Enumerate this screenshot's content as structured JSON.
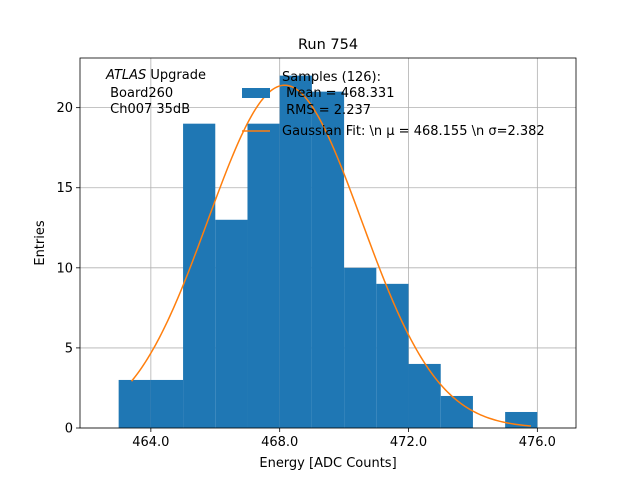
{
  "chart_data": {
    "type": "histogram",
    "title": "Run 754",
    "xlabel": "Energy [ADC Counts]",
    "ylabel": "Entries",
    "xlim": [
      461.8,
      477.2
    ],
    "ylim": [
      0,
      23.1
    ],
    "xticks": [
      464.0,
      468.0,
      472.0,
      476.0
    ],
    "xtick_labels": [
      "464.0",
      "468.0",
      "472.0",
      "476.0"
    ],
    "yticks": [
      0,
      5,
      10,
      15,
      20
    ],
    "ytick_labels": [
      "0",
      "5",
      "10",
      "15",
      "20"
    ],
    "grid": true,
    "bins": [
      {
        "x0": 463.0,
        "x1": 464.0,
        "count": 3
      },
      {
        "x0": 464.0,
        "x1": 465.0,
        "count": 3
      },
      {
        "x0": 465.0,
        "x1": 466.0,
        "count": 19
      },
      {
        "x0": 466.0,
        "x1": 467.0,
        "count": 13
      },
      {
        "x0": 467.0,
        "x1": 468.0,
        "count": 19
      },
      {
        "x0": 468.0,
        "x1": 469.0,
        "count": 22
      },
      {
        "x0": 469.0,
        "x1": 470.0,
        "count": 21
      },
      {
        "x0": 470.0,
        "x1": 471.0,
        "count": 10
      },
      {
        "x0": 471.0,
        "x1": 472.0,
        "count": 9
      },
      {
        "x0": 472.0,
        "x1": 473.0,
        "count": 4
      },
      {
        "x0": 473.0,
        "x1": 474.0,
        "count": 2
      },
      {
        "x0": 474.0,
        "x1": 475.0,
        "count": 0
      },
      {
        "x0": 475.0,
        "x1": 476.0,
        "count": 1
      }
    ],
    "fit": {
      "name": "Gaussian Fit",
      "mu": 468.155,
      "sigma": 2.382,
      "x_range": [
        463.4,
        475.8
      ],
      "amplitude": 21.4
    },
    "colors": {
      "histogram": "#1f77b4",
      "fit": "#ff7f0e"
    },
    "annotation": {
      "line1_italic": "ATLAS",
      "line1_rest": " Upgrade",
      "line2": " Board260",
      "line3": " Ch007 35dB"
    },
    "legend": {
      "position": "top-center",
      "hist_lines": [
        "Samples (126):",
        " Mean = 468.331",
        " RMS = 2.237"
      ],
      "fit_label": "Gaussian Fit: \\n μ = 468.155 \\n σ=2.382"
    }
  }
}
